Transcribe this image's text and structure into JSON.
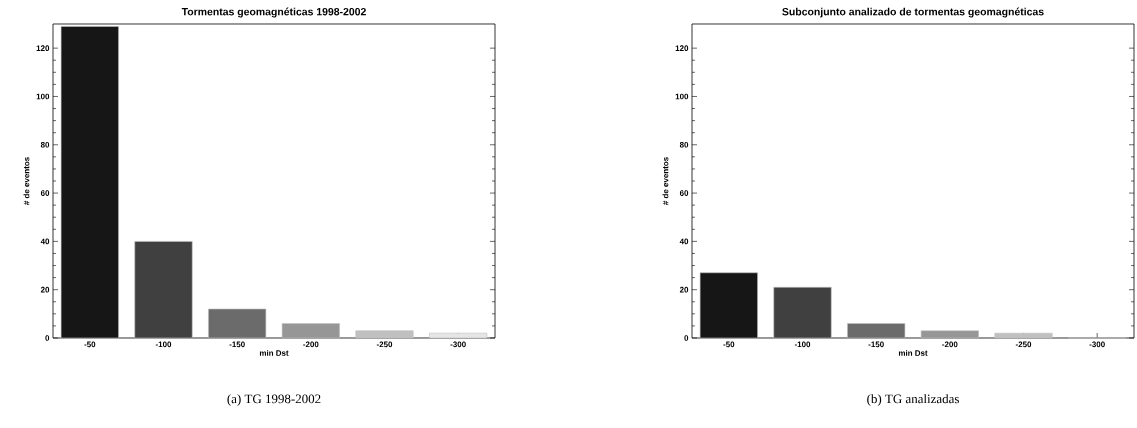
{
  "chart_data": [
    {
      "type": "bar",
      "title": "Tormentas geomagnéticas 1998-2002",
      "xlabel": "min Dst",
      "ylabel": "# de eventos",
      "categories": [
        "-50",
        "-100",
        "-150",
        "-200",
        "-250",
        "-300"
      ],
      "values": [
        129,
        40,
        12,
        6,
        3,
        2
      ],
      "colors": [
        "#161616",
        "#404040",
        "#6b6b6b",
        "#969696",
        "#c0c0c0",
        "#e6e6e6"
      ],
      "ylim": [
        0,
        130
      ],
      "yticks": [
        0,
        20,
        40,
        60,
        80,
        100,
        120
      ],
      "annotations": [
        "(a) TG 1998-2002"
      ]
    },
    {
      "type": "bar",
      "title": "Subconjunto analizado de tormentas geomagnéticas",
      "xlabel": "min Dst",
      "ylabel": "# de eventos",
      "categories": [
        "-50",
        "-100",
        "-150",
        "-200",
        "-250",
        "-300"
      ],
      "values": [
        27,
        21,
        6,
        3,
        2,
        0
      ],
      "colors": [
        "#161616",
        "#404040",
        "#6b6b6b",
        "#969696",
        "#c0c0c0",
        "#e6e6e6"
      ],
      "ylim": [
        0,
        130
      ],
      "yticks": [
        0,
        20,
        40,
        60,
        80,
        100,
        120
      ],
      "annotations": [
        "(b) TG analizadas"
      ]
    }
  ]
}
